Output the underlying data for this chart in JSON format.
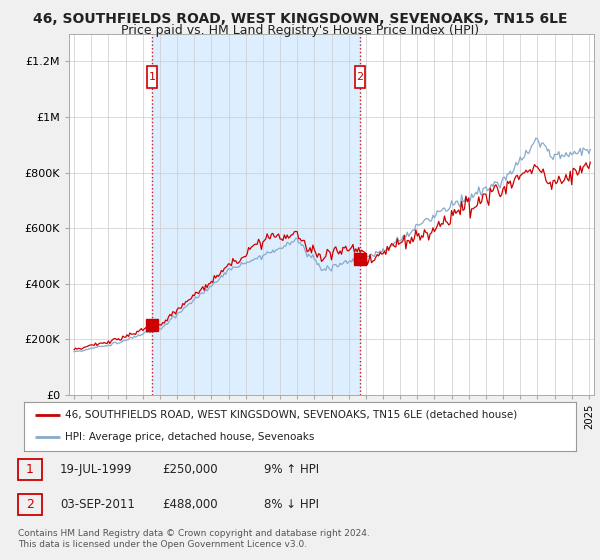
{
  "title": "46, SOUTHFIELDS ROAD, WEST KINGSDOWN, SEVENOAKS, TN15 6LE",
  "subtitle": "Price paid vs. HM Land Registry's House Price Index (HPI)",
  "bg_color": "#f0f0f0",
  "plot_bg_color": "#ffffff",
  "shade_color": "#ddeeff",
  "grid_color": "#cccccc",
  "red_line_color": "#cc0000",
  "blue_line_color": "#88aacc",
  "ylabel_ticks": [
    "£0",
    "£200K",
    "£400K",
    "£600K",
    "£800K",
    "£1M",
    "£1.2M"
  ],
  "ytick_values": [
    0,
    200000,
    400000,
    600000,
    800000,
    1000000,
    1200000
  ],
  "ylim": [
    0,
    1300000
  ],
  "xlim_start": 1994.7,
  "xlim_end": 2025.3,
  "transaction1_x": 1999.54,
  "transaction1_y": 250000,
  "transaction1_label": "1",
  "transaction2_x": 2011.67,
  "transaction2_y": 488000,
  "transaction2_label": "2",
  "legend_red": "46, SOUTHFIELDS ROAD, WEST KINGSDOWN, SEVENOAKS, TN15 6LE (detached house)",
  "legend_blue": "HPI: Average price, detached house, Sevenoaks",
  "table_row1": [
    "1",
    "19-JUL-1999",
    "£250,000",
    "9% ↑ HPI"
  ],
  "table_row2": [
    "2",
    "03-SEP-2011",
    "£488,000",
    "8% ↓ HPI"
  ],
  "footer": "Contains HM Land Registry data © Crown copyright and database right 2024.\nThis data is licensed under the Open Government Licence v3.0.",
  "title_fontsize": 10,
  "subtitle_fontsize": 9
}
